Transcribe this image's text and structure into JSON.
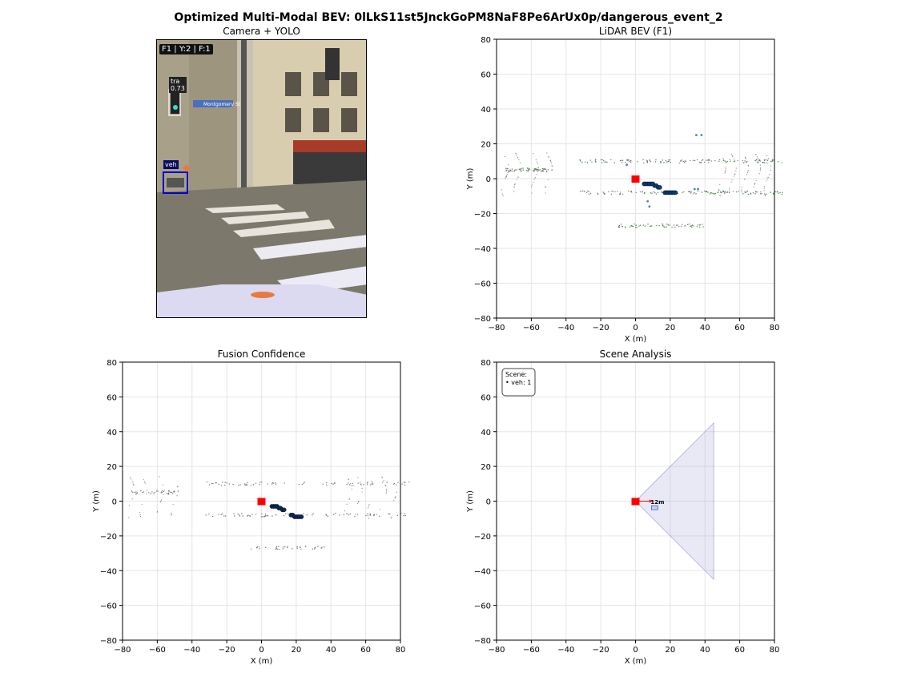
{
  "title": "Optimized Multi-Modal BEV: 0lLkS11st5JnckGoPM8NaF8Pe6ArUx0p/dangerous_event_2",
  "camera": {
    "title": "Camera + YOLO",
    "overlay": "F1 | Y:2 | F:1",
    "detections": [
      {
        "label": "tra",
        "score": "0.73",
        "color": "#111111"
      },
      {
        "label": "veh",
        "score": "",
        "color": "#0000cc"
      }
    ],
    "street_sign": "Montgomery St"
  },
  "chart_data": [
    {
      "id": "lidar",
      "type": "scatter",
      "title": "LiDAR BEV (F1)",
      "xlabel": "X (m)",
      "ylabel": "Y (m)",
      "xlim": [
        -80,
        80
      ],
      "ylim": [
        -80,
        80
      ],
      "ticks": [
        -80,
        -60,
        -40,
        -20,
        0,
        20,
        40,
        60,
        80
      ],
      "grid": true,
      "ego": {
        "x": 0,
        "y": 0,
        "color": "#ff0000"
      },
      "track": [
        [
          5,
          -3
        ],
        [
          6,
          -3
        ],
        [
          7,
          -3
        ],
        [
          8,
          -3
        ],
        [
          9,
          -3
        ],
        [
          10,
          -3
        ],
        [
          11,
          -4
        ],
        [
          12,
          -4
        ],
        [
          13,
          -5
        ],
        [
          14,
          -5
        ],
        [
          17,
          -8
        ],
        [
          18,
          -8
        ],
        [
          19,
          -8
        ],
        [
          20,
          -8
        ],
        [
          21,
          -8
        ],
        [
          22,
          -8
        ],
        [
          23,
          -8
        ]
      ],
      "track_color": "#0b3d7a",
      "extra_points": [
        [
          35,
          25
        ],
        [
          38,
          25
        ],
        [
          36,
          -6
        ],
        [
          34,
          -6
        ],
        [
          7,
          -13
        ],
        [
          8,
          -16
        ],
        [
          -5,
          8
        ]
      ],
      "extra_color": "#4a7fd0"
    },
    {
      "id": "fusion",
      "type": "scatter",
      "title": "Fusion Confidence",
      "xlabel": "X (m)",
      "ylabel": "Y (m)",
      "xlim": [
        -80,
        80
      ],
      "ylim": [
        -80,
        80
      ],
      "ticks": [
        -80,
        -60,
        -40,
        -20,
        0,
        20,
        40,
        60,
        80
      ],
      "grid": true,
      "ego": {
        "x": 0,
        "y": 0,
        "color": "#ff0000"
      },
      "track": [
        [
          6,
          -3
        ],
        [
          7,
          -3
        ],
        [
          8,
          -3
        ],
        [
          9,
          -3
        ],
        [
          10,
          -4
        ],
        [
          11,
          -4
        ],
        [
          12,
          -5
        ],
        [
          13,
          -5
        ],
        [
          17,
          -8
        ],
        [
          18,
          -8
        ],
        [
          19,
          -9
        ],
        [
          20,
          -9
        ],
        [
          21,
          -9
        ],
        [
          22,
          -9
        ],
        [
          23,
          -9
        ]
      ],
      "track_color": "#0b2a5a"
    },
    {
      "id": "scene",
      "type": "scatter",
      "title": "Scene Analysis",
      "xlabel": "X (m)",
      "ylabel": "Y (m)",
      "xlim": [
        -80,
        80
      ],
      "ylim": [
        -80,
        80
      ],
      "ticks": [
        -80,
        -60,
        -40,
        -20,
        0,
        20,
        40,
        60,
        80
      ],
      "grid": true,
      "ego": {
        "x": 0,
        "y": 0,
        "color": "#ff0000"
      },
      "fov": [
        [
          0,
          0
        ],
        [
          45,
          45
        ],
        [
          45,
          -45
        ]
      ],
      "fov_color": "#9090d0",
      "vehicle": {
        "x": 11,
        "y": -4,
        "distance_label": "12m",
        "color": "#4060c0"
      },
      "legend": {
        "title": "Scene:",
        "items": [
          "• veh: 1"
        ]
      }
    }
  ]
}
